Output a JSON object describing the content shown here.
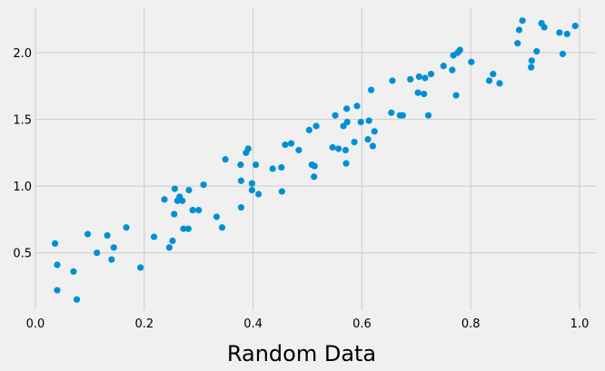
{
  "chart_data": {
    "type": "scatter",
    "title": "",
    "xlabel": "Random Data",
    "ylabel": "",
    "xlim": [
      0.0,
      1.03
    ],
    "ylim": [
      0.07,
      2.34
    ],
    "xticks": [
      0.0,
      0.2,
      0.4,
      0.6,
      0.8,
      1.0
    ],
    "xtick_labels": [
      "0.0",
      "0.2",
      "0.4",
      "0.6",
      "0.8",
      "1.0"
    ],
    "yticks": [
      0.5,
      1.0,
      1.5,
      2.0
    ],
    "ytick_labels": [
      "0.5",
      "1.0",
      "1.5",
      "2.0"
    ],
    "grid": true,
    "legend": null,
    "series": [
      {
        "name": "points",
        "color": "#008fd5",
        "points": [
          [
            0.036,
            0.57
          ],
          [
            0.04,
            0.41
          ],
          [
            0.04,
            0.22
          ],
          [
            0.07,
            0.36
          ],
          [
            0.076,
            0.15
          ],
          [
            0.096,
            0.64
          ],
          [
            0.113,
            0.5
          ],
          [
            0.132,
            0.63
          ],
          [
            0.14,
            0.45
          ],
          [
            0.144,
            0.54
          ],
          [
            0.167,
            0.69
          ],
          [
            0.193,
            0.39
          ],
          [
            0.218,
            0.62
          ],
          [
            0.237,
            0.9
          ],
          [
            0.246,
            0.54
          ],
          [
            0.252,
            0.59
          ],
          [
            0.255,
            0.79
          ],
          [
            0.256,
            0.98
          ],
          [
            0.261,
            0.89
          ],
          [
            0.265,
            0.92
          ],
          [
            0.27,
            0.89
          ],
          [
            0.272,
            0.68
          ],
          [
            0.281,
            0.68
          ],
          [
            0.282,
            0.97
          ],
          [
            0.289,
            0.82
          ],
          [
            0.3,
            0.82
          ],
          [
            0.309,
            1.01
          ],
          [
            0.333,
            0.77
          ],
          [
            0.343,
            0.69
          ],
          [
            0.349,
            1.2
          ],
          [
            0.377,
            1.16
          ],
          [
            0.378,
            0.84
          ],
          [
            0.378,
            1.04
          ],
          [
            0.387,
            1.25
          ],
          [
            0.391,
            1.28
          ],
          [
            0.398,
            0.97
          ],
          [
            0.398,
            1.02
          ],
          [
            0.405,
            1.16
          ],
          [
            0.41,
            0.94
          ],
          [
            0.436,
            1.13
          ],
          [
            0.452,
            1.14
          ],
          [
            0.453,
            0.96
          ],
          [
            0.459,
            1.31
          ],
          [
            0.47,
            1.32
          ],
          [
            0.484,
            1.27
          ],
          [
            0.503,
            1.42
          ],
          [
            0.508,
            1.16
          ],
          [
            0.512,
            1.07
          ],
          [
            0.513,
            1.15
          ],
          [
            0.516,
            1.45
          ],
          [
            0.546,
            1.29
          ],
          [
            0.551,
            1.53
          ],
          [
            0.557,
            1.28
          ],
          [
            0.566,
            1.45
          ],
          [
            0.57,
            1.27
          ],
          [
            0.571,
            1.17
          ],
          [
            0.572,
            1.58
          ],
          [
            0.573,
            1.48
          ],
          [
            0.586,
            1.33
          ],
          [
            0.591,
            1.6
          ],
          [
            0.598,
            1.48
          ],
          [
            0.611,
            1.35
          ],
          [
            0.613,
            1.49
          ],
          [
            0.617,
            1.72
          ],
          [
            0.62,
            1.3
          ],
          [
            0.623,
            1.41
          ],
          [
            0.654,
            1.55
          ],
          [
            0.656,
            1.79
          ],
          [
            0.67,
            1.53
          ],
          [
            0.675,
            1.53
          ],
          [
            0.689,
            1.8
          ],
          [
            0.703,
            1.7
          ],
          [
            0.705,
            1.82
          ],
          [
            0.714,
            1.69
          ],
          [
            0.716,
            1.81
          ],
          [
            0.722,
            1.53
          ],
          [
            0.727,
            1.84
          ],
          [
            0.75,
            1.9
          ],
          [
            0.766,
            1.87
          ],
          [
            0.768,
            1.98
          ],
          [
            0.773,
            1.68
          ],
          [
            0.776,
            2.0
          ],
          [
            0.78,
            2.02
          ],
          [
            0.801,
            1.93
          ],
          [
            0.834,
            1.79
          ],
          [
            0.841,
            1.84
          ],
          [
            0.853,
            1.77
          ],
          [
            0.886,
            2.07
          ],
          [
            0.889,
            2.17
          ],
          [
            0.895,
            2.24
          ],
          [
            0.911,
            1.89
          ],
          [
            0.912,
            1.94
          ],
          [
            0.921,
            2.01
          ],
          [
            0.93,
            2.22
          ],
          [
            0.935,
            2.19
          ],
          [
            0.963,
            2.15
          ],
          [
            0.969,
            1.99
          ],
          [
            0.977,
            2.14
          ],
          [
            0.992,
            2.2
          ]
        ]
      }
    ]
  }
}
